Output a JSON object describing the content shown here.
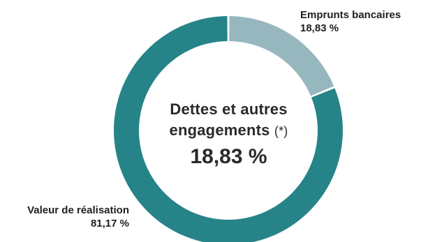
{
  "chart_data": {
    "type": "pie",
    "donut": true,
    "series": [
      {
        "name": "Emprunts bancaires",
        "value": 18.83,
        "value_label": "18,83 %",
        "color": "#97b7bf"
      },
      {
        "name": "Valeur de réalisation",
        "value": 81.17,
        "value_label": "81,17 %",
        "color": "#268489"
      }
    ],
    "center": {
      "title_line1": "Dettes et autres",
      "title_line2": "engagements",
      "note": "(*)",
      "value": "18,83 %"
    },
    "legend": "none",
    "grid": false
  }
}
